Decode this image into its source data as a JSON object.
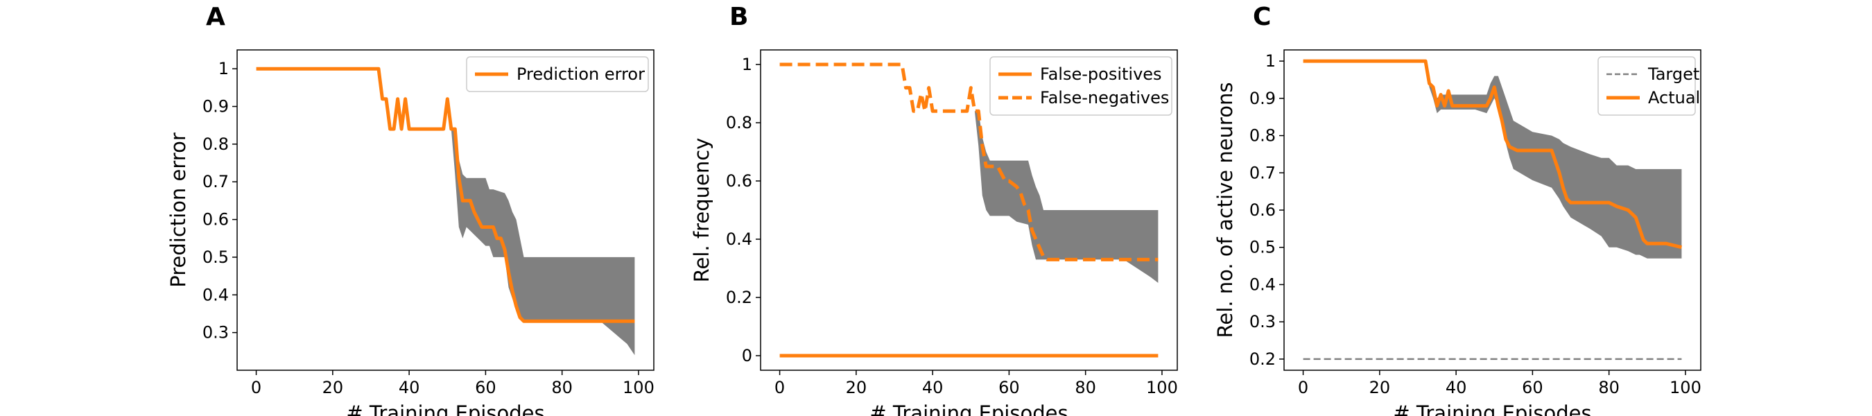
{
  "figure": {
    "colors": {
      "orange": "#ff7f0e",
      "band": "#808080",
      "target": "#808080",
      "axis": "#000000"
    }
  },
  "chart_data": [
    {
      "panel": "A",
      "type": "line",
      "xlabel": "# Training Episodes",
      "ylabel": "Prediction error",
      "xlim": [
        -5,
        104
      ],
      "ylim": [
        0.2,
        1.05
      ],
      "xticks": [
        0,
        20,
        40,
        60,
        80,
        100
      ],
      "yticks": [
        0.3,
        0.4,
        0.5,
        0.6,
        0.7,
        0.8,
        0.9,
        1.0
      ],
      "legend_position": "top-right",
      "legend": [
        {
          "label": "Prediction error",
          "style": "solid"
        }
      ],
      "band": {
        "x": [
          0,
          32,
          33,
          34,
          35,
          36,
          37,
          38,
          39,
          40,
          45,
          49,
          50,
          51,
          52,
          53,
          54,
          55,
          60,
          61,
          62,
          65,
          66,
          67,
          68,
          69,
          70,
          71,
          75,
          90,
          97,
          99
        ],
        "upper": [
          1.0,
          1.0,
          0.92,
          0.92,
          0.84,
          0.92,
          0.84,
          0.92,
          0.84,
          0.84,
          0.84,
          0.92,
          0.84,
          0.84,
          0.84,
          0.76,
          0.72,
          0.71,
          0.71,
          0.68,
          0.68,
          0.67,
          0.65,
          0.62,
          0.6,
          0.55,
          0.5,
          0.5,
          0.5,
          0.5,
          0.5,
          0.5
        ],
        "lower": [
          1.0,
          1.0,
          0.92,
          0.92,
          0.84,
          0.92,
          0.84,
          0.92,
          0.84,
          0.84,
          0.84,
          0.92,
          0.84,
          0.84,
          0.72,
          0.58,
          0.55,
          0.58,
          0.53,
          0.53,
          0.5,
          0.5,
          0.42,
          0.39,
          0.36,
          0.34,
          0.33,
          0.33,
          0.33,
          0.33,
          0.27,
          0.24
        ]
      },
      "series": [
        {
          "name": "Prediction error",
          "style": "solid",
          "x": [
            0,
            32,
            33,
            34,
            35,
            36,
            37,
            38,
            39,
            40,
            45,
            49,
            50,
            51,
            52,
            53,
            54,
            55,
            56,
            57,
            59,
            60,
            62,
            63,
            64,
            65,
            66,
            67,
            68,
            69,
            70,
            71,
            99
          ],
          "y": [
            1.0,
            1.0,
            0.92,
            0.92,
            0.84,
            0.84,
            0.92,
            0.84,
            0.92,
            0.84,
            0.84,
            0.84,
            0.92,
            0.84,
            0.84,
            0.71,
            0.65,
            0.65,
            0.65,
            0.62,
            0.58,
            0.58,
            0.58,
            0.55,
            0.55,
            0.52,
            0.46,
            0.41,
            0.37,
            0.34,
            0.33,
            0.33,
            0.33
          ]
        }
      ]
    },
    {
      "panel": "B",
      "type": "line",
      "xlabel": "# Training Episodes",
      "ylabel": "Rel. frequency",
      "xlim": [
        -5,
        104
      ],
      "ylim": [
        -0.05,
        1.05
      ],
      "xticks": [
        0,
        20,
        40,
        60,
        80,
        100
      ],
      "yticks": [
        0.0,
        0.2,
        0.4,
        0.6,
        0.8,
        1.0
      ],
      "legend_position": "top-right",
      "legend": [
        {
          "label": "False-positives",
          "style": "solid"
        },
        {
          "label": "False-negatives",
          "style": "dashed"
        }
      ],
      "band": {
        "x": [
          0,
          32,
          33,
          34,
          35,
          36,
          37,
          38,
          39,
          40,
          45,
          49,
          50,
          51,
          52,
          53,
          54,
          55,
          60,
          61,
          62,
          65,
          66,
          67,
          68,
          69,
          70,
          71,
          75,
          90,
          97,
          99
        ],
        "upper": [
          1.0,
          1.0,
          0.92,
          0.92,
          0.84,
          0.92,
          0.84,
          0.92,
          0.84,
          0.84,
          0.84,
          0.92,
          0.84,
          0.84,
          0.84,
          0.75,
          0.7,
          0.67,
          0.67,
          0.67,
          0.67,
          0.67,
          0.62,
          0.58,
          0.55,
          0.5,
          0.5,
          0.5,
          0.5,
          0.5,
          0.5,
          0.5
        ],
        "lower": [
          1.0,
          1.0,
          0.92,
          0.92,
          0.84,
          0.92,
          0.84,
          0.92,
          0.84,
          0.84,
          0.84,
          0.92,
          0.84,
          0.84,
          0.72,
          0.55,
          0.5,
          0.48,
          0.48,
          0.47,
          0.46,
          0.45,
          0.38,
          0.33,
          0.33,
          0.33,
          0.33,
          0.33,
          0.33,
          0.33,
          0.27,
          0.25
        ]
      },
      "series": [
        {
          "name": "False-positives",
          "style": "solid",
          "x": [
            0,
            99
          ],
          "y": [
            0.0,
            0.0
          ]
        },
        {
          "name": "False-negatives",
          "style": "dashed",
          "x": [
            0,
            32,
            33,
            34,
            35,
            36,
            37,
            38,
            39,
            40,
            45,
            49,
            50,
            51,
            52,
            53,
            54,
            55,
            57,
            59,
            60,
            62,
            63,
            64,
            65,
            66,
            67,
            68,
            69,
            70,
            71,
            99
          ],
          "y": [
            1.0,
            1.0,
            0.92,
            0.92,
            0.84,
            0.84,
            0.9,
            0.84,
            0.92,
            0.84,
            0.84,
            0.84,
            0.92,
            0.84,
            0.84,
            0.72,
            0.65,
            0.65,
            0.65,
            0.6,
            0.6,
            0.58,
            0.56,
            0.52,
            0.5,
            0.43,
            0.4,
            0.37,
            0.34,
            0.33,
            0.33,
            0.33
          ]
        }
      ]
    },
    {
      "panel": "C",
      "type": "line",
      "xlabel": "# Training Episodes",
      "ylabel": "Rel. no. of active neurons",
      "xlim": [
        -5,
        104
      ],
      "ylim": [
        0.17,
        1.03
      ],
      "xticks": [
        0,
        20,
        40,
        60,
        80,
        100
      ],
      "yticks": [
        0.2,
        0.3,
        0.4,
        0.5,
        0.6,
        0.7,
        0.8,
        0.9,
        1.0
      ],
      "legend_position": "top-right",
      "legend": [
        {
          "label": "Target",
          "style": "dashed"
        },
        {
          "label": "Actual",
          "style": "solid"
        }
      ],
      "band": {
        "x": [
          0,
          32,
          33,
          34,
          35,
          36,
          38,
          40,
          45,
          48,
          49,
          50,
          51,
          52,
          53,
          54,
          55,
          60,
          65,
          67,
          68,
          70,
          75,
          78,
          80,
          82,
          85,
          87,
          88,
          90,
          95,
          99
        ],
        "upper": [
          1.0,
          1.0,
          0.95,
          0.93,
          0.9,
          0.91,
          0.91,
          0.91,
          0.91,
          0.91,
          0.94,
          0.96,
          0.96,
          0.93,
          0.9,
          0.87,
          0.84,
          0.81,
          0.8,
          0.79,
          0.78,
          0.77,
          0.75,
          0.74,
          0.74,
          0.72,
          0.72,
          0.71,
          0.71,
          0.71,
          0.71,
          0.71
        ],
        "lower": [
          1.0,
          1.0,
          0.93,
          0.9,
          0.86,
          0.87,
          0.87,
          0.87,
          0.87,
          0.86,
          0.88,
          0.9,
          0.88,
          0.84,
          0.78,
          0.74,
          0.71,
          0.68,
          0.66,
          0.63,
          0.61,
          0.58,
          0.55,
          0.53,
          0.5,
          0.5,
          0.49,
          0.48,
          0.48,
          0.47,
          0.47,
          0.47
        ]
      },
      "series": [
        {
          "name": "Target",
          "style": "dashed",
          "x": [
            0,
            99
          ],
          "y": [
            0.2,
            0.2
          ]
        },
        {
          "name": "Actual",
          "style": "solid",
          "x": [
            0,
            32,
            33,
            34,
            35,
            36,
            37,
            38,
            39,
            40,
            45,
            48,
            49,
            50,
            51,
            52,
            53,
            54,
            56,
            60,
            62,
            65,
            66,
            67,
            68,
            69,
            70,
            75,
            80,
            82,
            85,
            87,
            88,
            89,
            90,
            95,
            99
          ],
          "y": [
            1.0,
            1.0,
            0.94,
            0.93,
            0.88,
            0.91,
            0.88,
            0.92,
            0.88,
            0.88,
            0.88,
            0.88,
            0.9,
            0.93,
            0.88,
            0.84,
            0.79,
            0.77,
            0.76,
            0.76,
            0.76,
            0.76,
            0.73,
            0.7,
            0.66,
            0.63,
            0.62,
            0.62,
            0.62,
            0.61,
            0.6,
            0.58,
            0.55,
            0.52,
            0.51,
            0.51,
            0.5
          ]
        }
      ]
    }
  ]
}
